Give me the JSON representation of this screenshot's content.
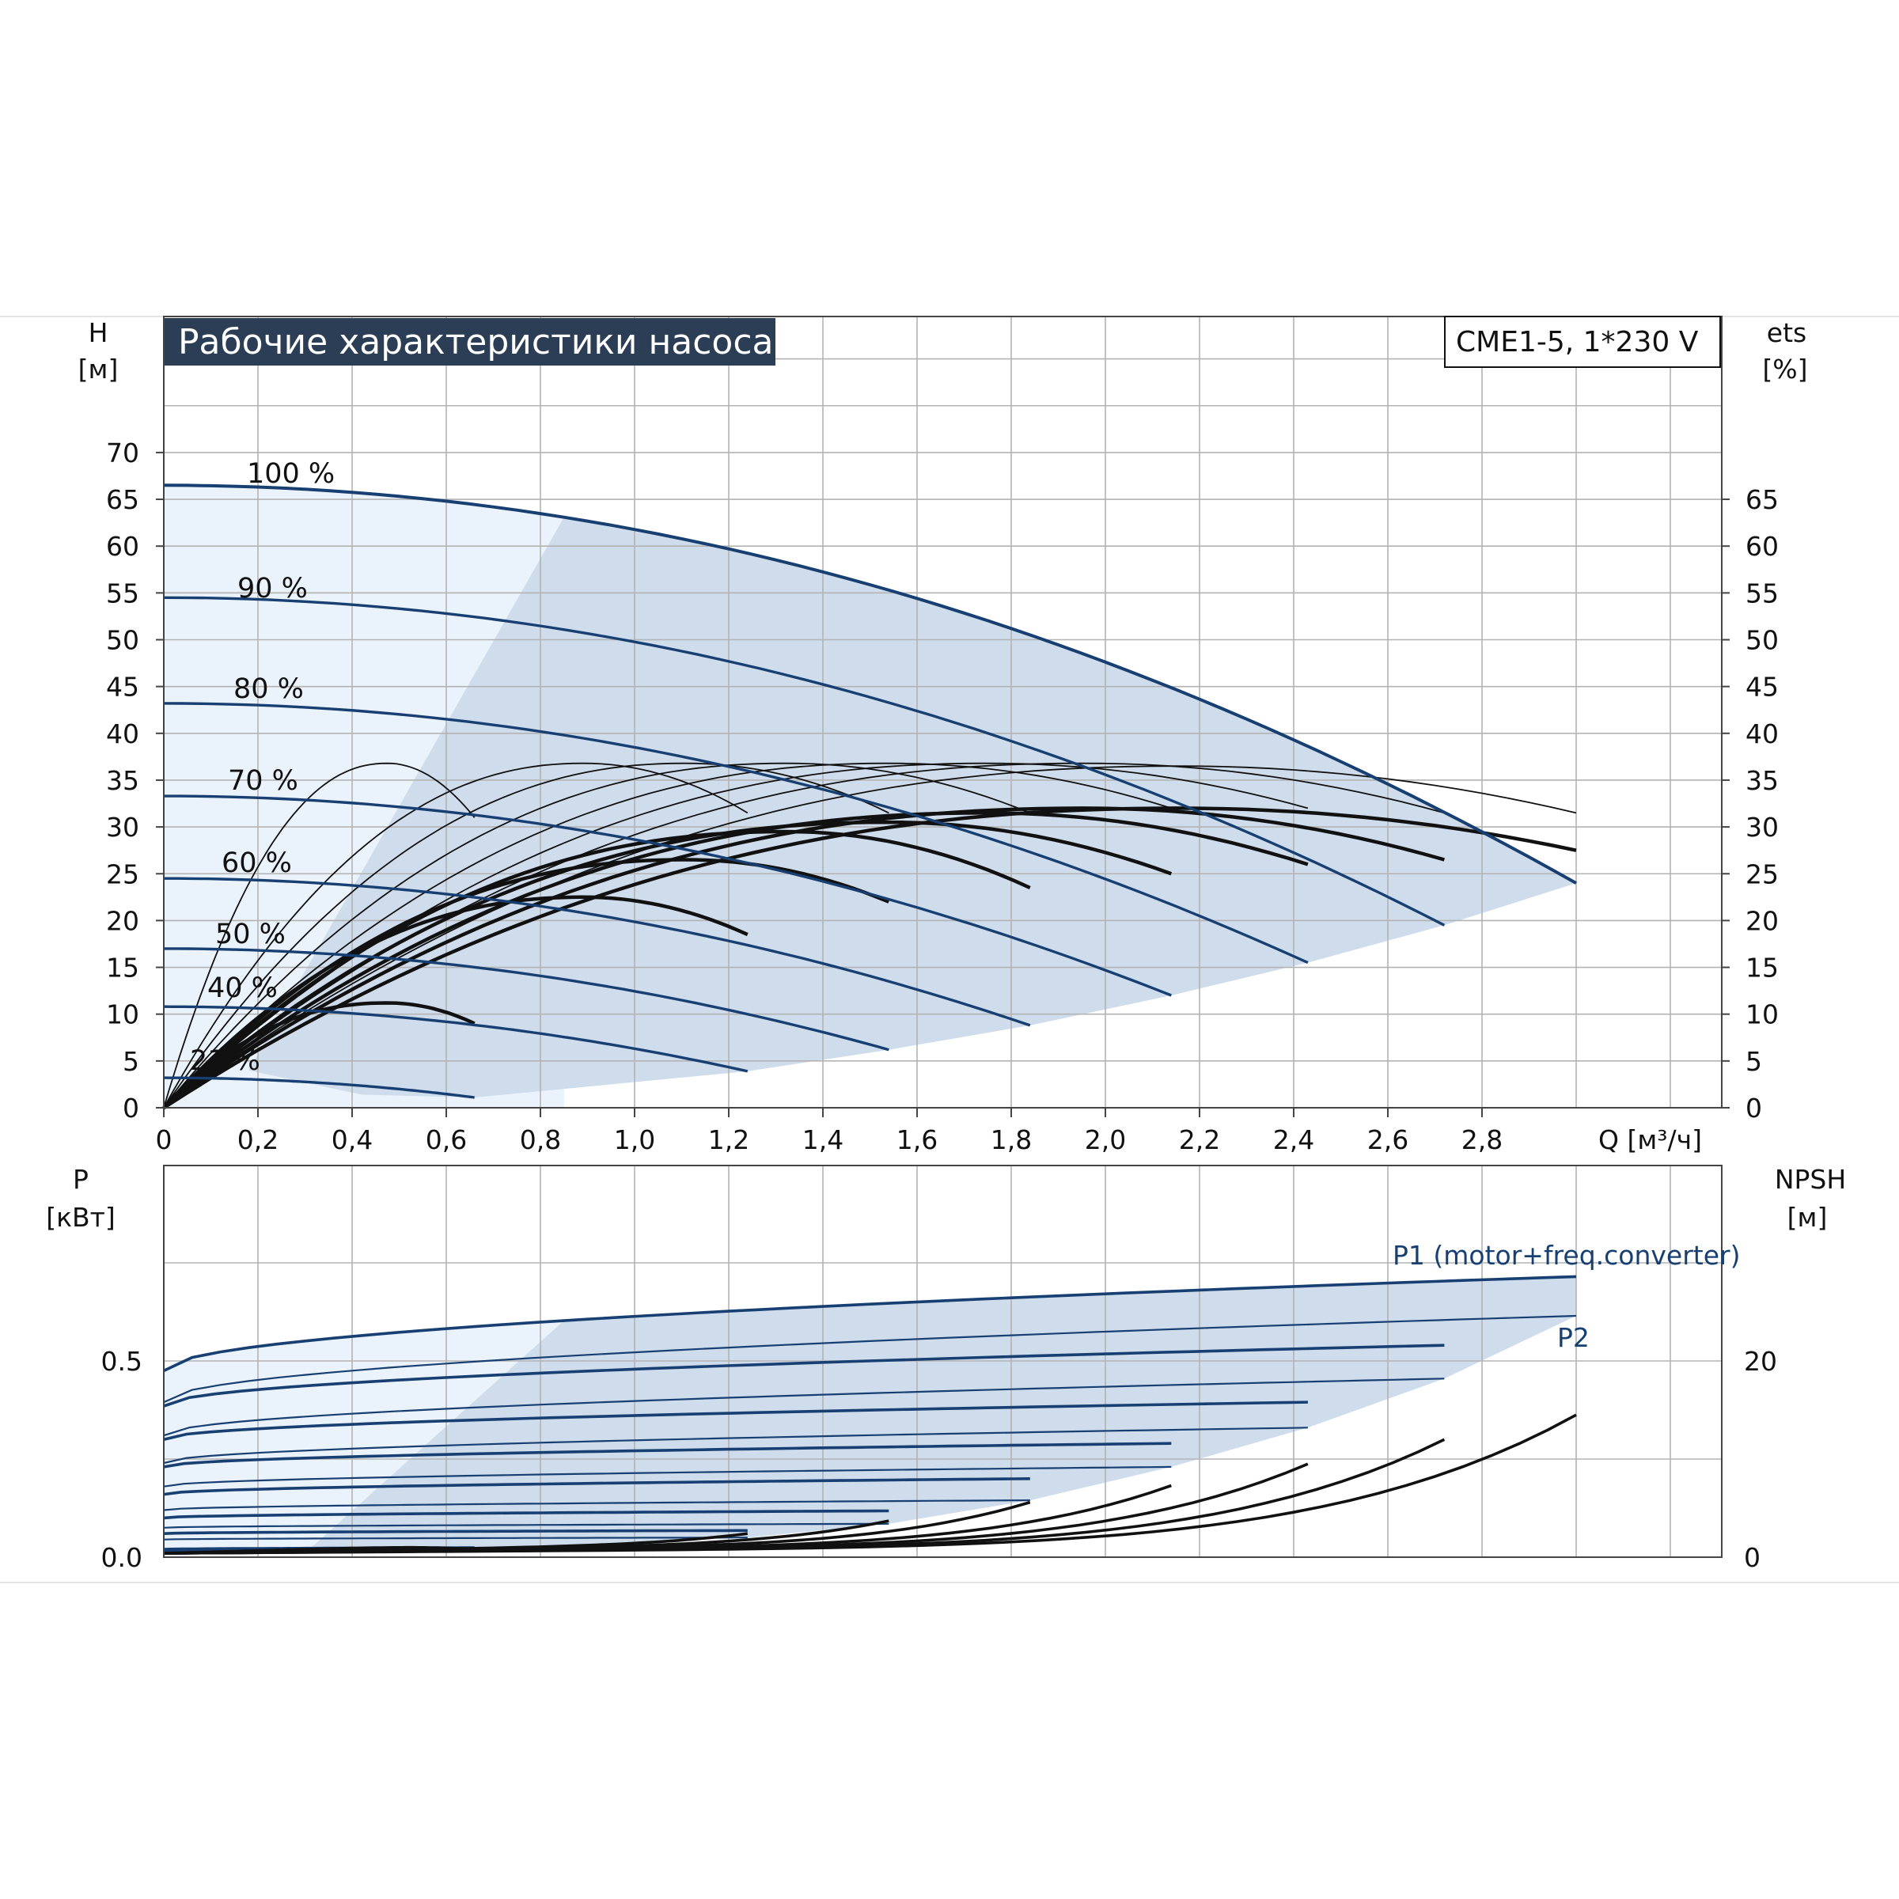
{
  "title": "Рабочие характеристики насоса",
  "model": "CME1-5, 1*230 V",
  "colors": {
    "title_bg": "#2b3e55",
    "curve_blue": "#173f72",
    "area_fill": "#cfdcec",
    "area_light": "#eaf2fb",
    "grid": "#b3b3b3",
    "black": "#111111"
  },
  "chart_data": [
    {
      "type": "line",
      "name": "head",
      "left_axis_title": "H",
      "left_axis_unit": "[м]",
      "right_axis_title": "ets",
      "right_axis_unit": "[%]",
      "xlabel": "Q [м³/ч]",
      "x_ticks": [
        "0",
        "0,2",
        "0,4",
        "0,6",
        "0,8",
        "1,0",
        "1,2",
        "1,4",
        "1,6",
        "1,8",
        "2,0",
        "2,2",
        "2,4",
        "2,6",
        "2,8"
      ],
      "x_tick_values": [
        0,
        0.2,
        0.4,
        0.6,
        0.8,
        1.0,
        1.2,
        1.4,
        1.6,
        1.8,
        2.0,
        2.2,
        2.4,
        2.6,
        2.8
      ],
      "y_ticks_left": [
        0,
        5,
        10,
        15,
        20,
        25,
        30,
        35,
        40,
        45,
        50,
        55,
        60,
        65,
        70
      ],
      "y_ticks_right": [
        0,
        5,
        10,
        15,
        20,
        25,
        30,
        35,
        40,
        45,
        50,
        55,
        60,
        65
      ],
      "xlim": [
        0,
        3.3
      ],
      "ylim": [
        0,
        84.5
      ],
      "grid": true,
      "speed_labels": [
        "100 %",
        "90 %",
        "80 %",
        "70 %",
        "60 %",
        "50 %",
        "40 %",
        "21 %"
      ],
      "head_curves": [
        {
          "label": "100 %",
          "h0": 66.5,
          "qmax": 3.0,
          "hend": 24
        },
        {
          "label": "90 %",
          "h0": 54.5,
          "qmax": 2.72,
          "hend": 19.5
        },
        {
          "label": "80 %",
          "h0": 43.2,
          "qmax": 2.43,
          "hend": 15.5
        },
        {
          "label": "70 %",
          "h0": 33.3,
          "qmax": 2.14,
          "hend": 12
        },
        {
          "label": "60 %",
          "h0": 24.5,
          "qmax": 1.84,
          "hend": 8.8
        },
        {
          "label": "50 %",
          "h0": 17,
          "qmax": 1.54,
          "hend": 6.2
        },
        {
          "label": "40 %",
          "h0": 10.8,
          "qmax": 1.24,
          "hend": 3.9
        },
        {
          "label": "21 %",
          "h0": 3.2,
          "qmax": 0.66,
          "hend": 1.1
        }
      ],
      "efficiency_curves": [
        {
          "qmax": 0.66,
          "peak": 36.8,
          "end": 31,
          "bold": false
        },
        {
          "qmax": 1.24,
          "peak": 36.8,
          "end": 31.5,
          "bold": false
        },
        {
          "qmax": 1.54,
          "peak": 36.8,
          "end": 31.5,
          "bold": false
        },
        {
          "qmax": 1.84,
          "peak": 36.8,
          "end": 31.5,
          "bold": false
        },
        {
          "qmax": 2.14,
          "peak": 36.8,
          "end": 32,
          "bold": false
        },
        {
          "qmax": 2.43,
          "peak": 36.8,
          "end": 32,
          "bold": false
        },
        {
          "qmax": 2.72,
          "peak": 36.8,
          "end": 31.5,
          "bold": false
        },
        {
          "qmax": 3.0,
          "peak": 36.5,
          "end": 31.5,
          "bold": false
        },
        {
          "qmax": 0.66,
          "peak": 11.2,
          "end": 9,
          "bold": true
        },
        {
          "qmax": 1.24,
          "peak": 22.5,
          "end": 18.5,
          "bold": true
        },
        {
          "qmax": 1.54,
          "peak": 26.5,
          "end": 22,
          "bold": true
        },
        {
          "qmax": 1.84,
          "peak": 29.5,
          "end": 23.5,
          "bold": true
        },
        {
          "qmax": 2.14,
          "peak": 30.5,
          "end": 25,
          "bold": true
        },
        {
          "qmax": 2.43,
          "peak": 31.5,
          "end": 26,
          "bold": true
        },
        {
          "qmax": 2.72,
          "peak": 32,
          "end": 26.5,
          "bold": true
        },
        {
          "qmax": 3.0,
          "peak": 32,
          "end": 27.5,
          "bold": true
        }
      ]
    },
    {
      "type": "line",
      "name": "power",
      "left_axis_title": "P",
      "left_axis_unit": "[кВт]",
      "right_axis_title": "NPSH",
      "right_axis_unit": "[м]",
      "y_ticks_left": [
        "0.0",
        "0.5"
      ],
      "y_tick_values_left": [
        0,
        0.5
      ],
      "y_ticks_right": [
        "0",
        "20"
      ],
      "ylim": [
        0,
        1.0
      ],
      "series_labels": [
        "P1 (motor+freq.converter)",
        "P2"
      ],
      "p1_curves": [
        {
          "qmax": 3.0,
          "p0": 0.475,
          "pend": 0.715
        },
        {
          "qmax": 2.72,
          "p0": 0.385,
          "pend": 0.54
        },
        {
          "qmax": 2.43,
          "p0": 0.3,
          "pend": 0.395
        },
        {
          "qmax": 2.14,
          "p0": 0.23,
          "pend": 0.29
        },
        {
          "qmax": 1.84,
          "p0": 0.16,
          "pend": 0.2
        },
        {
          "qmax": 1.54,
          "p0": 0.1,
          "pend": 0.118
        },
        {
          "qmax": 1.24,
          "p0": 0.06,
          "pend": 0.068
        },
        {
          "qmax": 0.66,
          "p0": 0.02,
          "pend": 0.024
        }
      ],
      "p2_curves": [
        {
          "qmax": 3.0,
          "p0": 0.395,
          "pend": 0.615
        },
        {
          "qmax": 2.72,
          "p0": 0.31,
          "pend": 0.455
        },
        {
          "qmax": 2.43,
          "p0": 0.24,
          "pend": 0.33
        },
        {
          "qmax": 2.14,
          "p0": 0.18,
          "pend": 0.23
        },
        {
          "qmax": 1.84,
          "p0": 0.12,
          "pend": 0.145
        },
        {
          "qmax": 1.54,
          "p0": 0.075,
          "pend": 0.085
        },
        {
          "qmax": 1.24,
          "p0": 0.045,
          "pend": 0.05
        },
        {
          "qmax": 0.66,
          "p0": 0.015,
          "pend": 0.018
        }
      ],
      "npsh_curves": [
        {
          "qmax": 3.0,
          "end": 14.5
        },
        {
          "qmax": 2.72,
          "end": 12
        },
        {
          "qmax": 2.43,
          "end": 9.5
        },
        {
          "qmax": 2.14,
          "end": 7.3
        },
        {
          "qmax": 1.84,
          "end": 5.6
        },
        {
          "qmax": 1.54,
          "end": 3.7
        },
        {
          "qmax": 1.24,
          "end": 2.4
        },
        {
          "qmax": 0.66,
          "end": 0.8
        }
      ]
    }
  ]
}
